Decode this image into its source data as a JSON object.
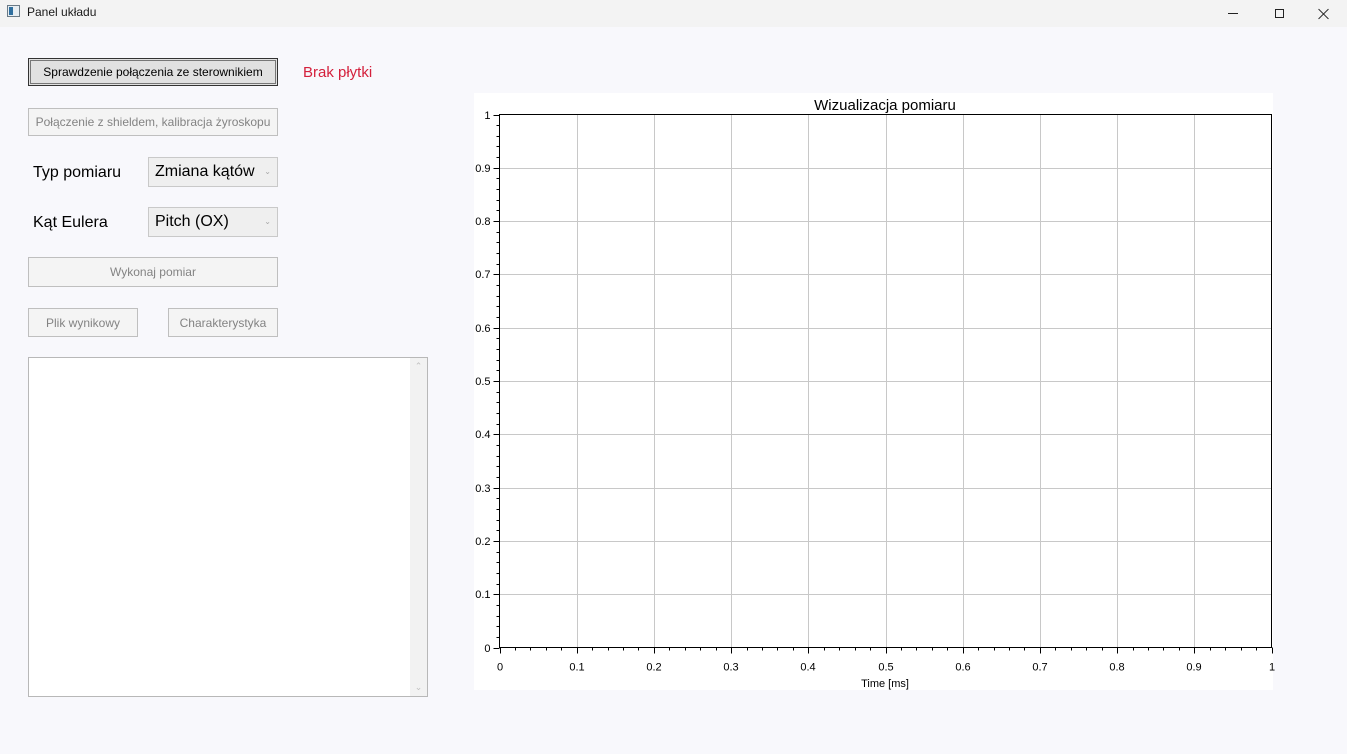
{
  "window": {
    "title": "Panel układu",
    "controls": [
      "minimize-icon",
      "maximize-icon",
      "close-icon"
    ]
  },
  "left_panel": {
    "check_connection_button": "Sprawdzenie połączenia ze sterownikiem",
    "board_status": "Brak płytki",
    "board_status_color": "#d4203c",
    "shield_button": "Połączenie z shieldem, kalibracja żyroskopu",
    "measurement_type_label": "Typ pomiaru",
    "measurement_type_value": "Zmiana kątów",
    "euler_label": "Kąt Eulera",
    "euler_value": "Pitch (OX)",
    "run_button": "Wykonaj pomiar",
    "result_file_button": "Plik wynikowy",
    "characteristic_button": "Charakterystyka",
    "log_text": ""
  },
  "chart_data": {
    "type": "line",
    "title": "Wizualizacja pomiaru",
    "xlabel": "Time [ms]",
    "ylabel": "",
    "xlim": [
      0,
      1
    ],
    "ylim": [
      0,
      1
    ],
    "xticks": [
      "0",
      "0.1",
      "0.2",
      "0.3",
      "0.4",
      "0.5",
      "0.6",
      "0.7",
      "0.8",
      "0.9",
      "1"
    ],
    "yticks": [
      "0",
      "0.1",
      "0.2",
      "0.3",
      "0.4",
      "0.5",
      "0.6",
      "0.7",
      "0.8",
      "0.9",
      "1"
    ],
    "grid": true,
    "series": []
  }
}
